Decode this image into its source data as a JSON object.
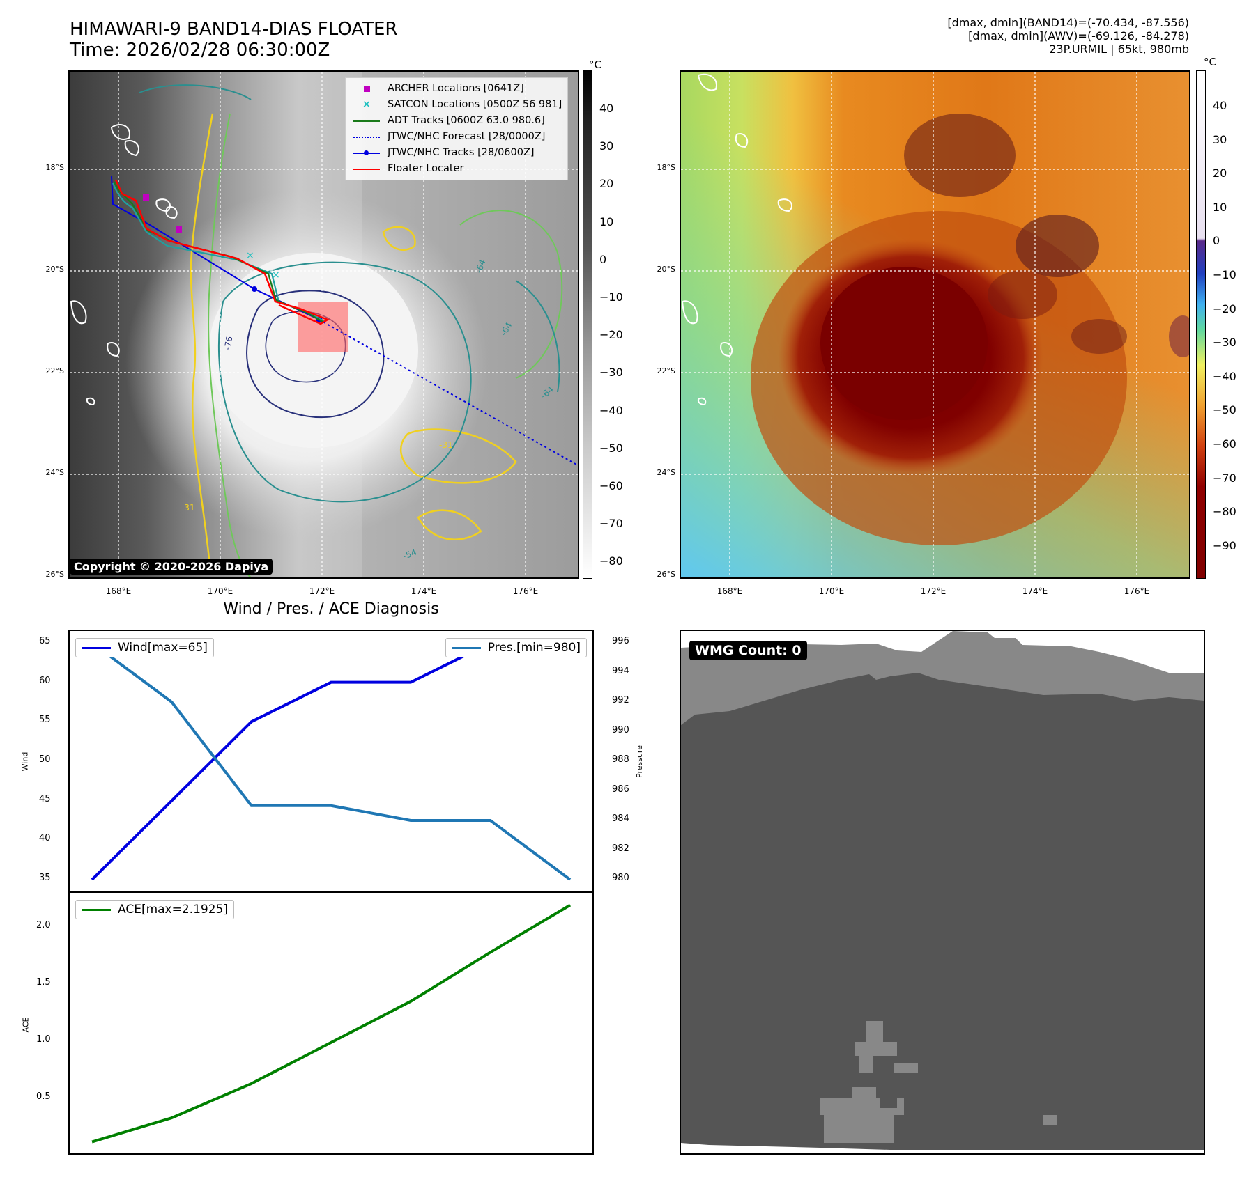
{
  "header": {
    "title_line1": "HIMAWARI-9 BAND14-DIAS FLOATER",
    "title_line2": "Time: 2026/02/28 06:30:00Z",
    "info_line1": "[dmax, dmin](BAND14)=(-70.434, -87.556)",
    "info_line2": "[dmax, dmin](AWV)=(-69.126, -84.278)",
    "info_line3": "23P.URMIL | 65kt, 980mb"
  },
  "map": {
    "lat_labels": [
      "18°S",
      "20°S",
      "22°S",
      "24°S",
      "26°S"
    ],
    "lon_labels": [
      "168°E",
      "170°E",
      "172°E",
      "174°E",
      "176°E"
    ],
    "copyright": "Copyright © 2020-2026 Dapiya",
    "contour_labels": [
      "-64",
      "-76",
      "-64",
      "-31",
      "-54",
      "-31",
      "-64"
    ]
  },
  "colorbar_left": {
    "unit": "°C",
    "ticks": [
      "40",
      "30",
      "20",
      "10",
      "0",
      "−10",
      "−20",
      "−30",
      "−40",
      "−50",
      "−60",
      "−70",
      "−80"
    ]
  },
  "colorbar_right": {
    "unit": "°C",
    "ticks": [
      "40",
      "30",
      "20",
      "10",
      "0",
      "−10",
      "−20",
      "−30",
      "−40",
      "−50",
      "−60",
      "−70",
      "−80",
      "−90"
    ]
  },
  "legend": {
    "archer": "ARCHER Locations [0641Z]",
    "satcon": "SATCON Locations [0500Z 56 981]",
    "adt": "ADT Tracks [0600Z 63.0 980.6]",
    "jtwc_forecast": "JTWC/NHC Forecast [28/0000Z]",
    "jtwc_tracks": "JTWC/NHC Tracks [28/0600Z]",
    "floater": "Floater Locater"
  },
  "diagnosis": {
    "title": "Wind / Pres. / ACE Diagnosis",
    "wind_legend": "Wind[max=65]",
    "pres_legend": "Pres.[min=980]",
    "ace_legend": "ACE[max=2.1925]",
    "wind_ylabel": "Wind",
    "pres_ylabel": "Pressure",
    "ace_ylabel": "ACE",
    "wind_ticks": [
      "65",
      "60",
      "55",
      "50",
      "45",
      "40",
      "35"
    ],
    "pres_ticks": [
      "996",
      "994",
      "992",
      "990",
      "988",
      "986",
      "984",
      "982",
      "980"
    ],
    "ace_ticks": [
      "2.0",
      "1.5",
      "1.0",
      "0.5"
    ]
  },
  "wmg": {
    "label": "WMG Count: 0"
  },
  "colors": {
    "wind": "#0000e0",
    "pressure": "#1f77b4",
    "ace": "#008000",
    "floater": "#ff0000"
  },
  "chart_data": [
    {
      "type": "line",
      "title": "Wind / Pres. / ACE Diagnosis",
      "x": [
        0,
        1,
        2,
        3,
        4,
        5,
        6
      ],
      "series": [
        {
          "name": "Wind[max=65]",
          "axis": "left",
          "values": [
            35,
            45,
            55,
            60,
            60,
            65,
            65
          ]
        },
        {
          "name": "Pres.[min=980]",
          "axis": "right",
          "values": [
            996,
            992,
            985,
            985,
            984,
            984,
            980
          ]
        }
      ],
      "ylabel": "Wind",
      "y2label": "Pressure",
      "ylim": [
        33.5,
        66.5
      ],
      "y2lim": [
        979.2,
        996.8
      ]
    },
    {
      "type": "line",
      "title": "",
      "x": [
        0,
        1,
        2,
        3,
        4,
        5,
        6
      ],
      "series": [
        {
          "name": "ACE[max=2.1925]",
          "values": [
            0.12,
            0.33,
            0.63,
            0.99,
            1.35,
            1.78,
            2.1925
          ]
        }
      ],
      "ylabel": "ACE",
      "ylim": [
        0.02,
        2.3
      ]
    }
  ]
}
